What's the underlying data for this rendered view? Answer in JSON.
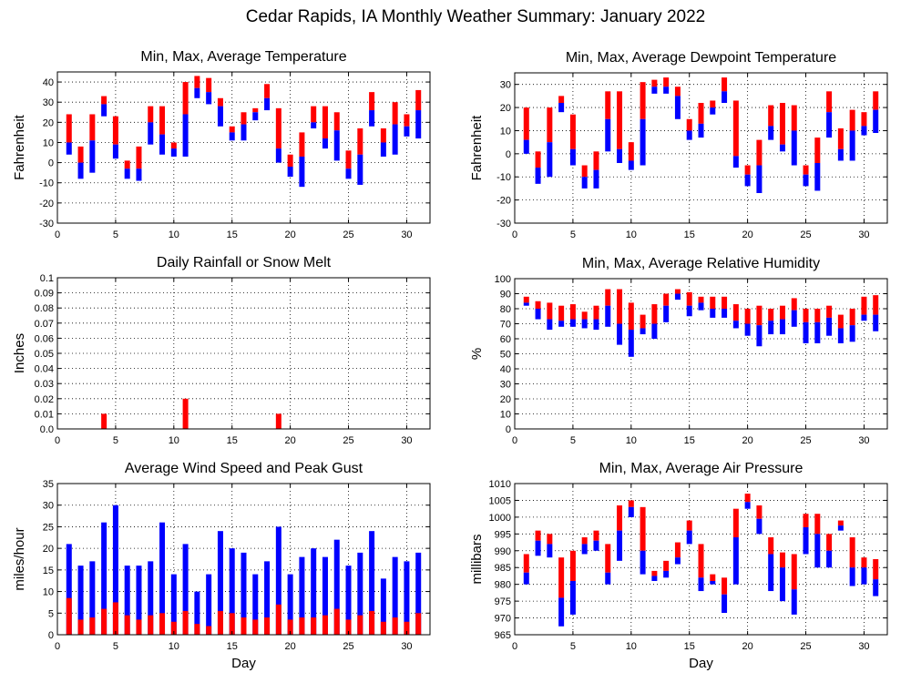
{
  "figure": {
    "title": "Cedar Rapids, IA Monthly Weather Summary: January 2022"
  },
  "colors": {
    "upper": "#ff0000",
    "lower": "#0000ff"
  },
  "chart_data": [
    {
      "id": "temperature",
      "type": "bar",
      "title": "Min, Max, Average Temperature",
      "xlabel": "",
      "ylabel": "Fahrenheit",
      "xlim": [
        0,
        32
      ],
      "ylim": [
        -30,
        45
      ],
      "yticks": [
        -30,
        -20,
        -10,
        0,
        10,
        20,
        30,
        40
      ],
      "xticks": [
        0,
        5,
        10,
        15,
        20,
        25,
        30
      ],
      "grid": true,
      "x": [
        1,
        2,
        3,
        4,
        5,
        6,
        7,
        8,
        9,
        10,
        11,
        12,
        13,
        14,
        15,
        16,
        17,
        18,
        19,
        20,
        21,
        22,
        23,
        24,
        25,
        26,
        27,
        28,
        29,
        30,
        31
      ],
      "min": [
        4,
        -8,
        -5,
        23,
        2,
        -8,
        -9,
        9,
        4,
        3,
        3,
        32,
        29,
        18,
        11,
        11,
        21,
        26,
        0,
        -7,
        -12,
        17,
        7,
        1,
        -8,
        -11,
        18,
        3,
        4,
        13,
        12
      ],
      "max": [
        24,
        8,
        24,
        33,
        23,
        1,
        8,
        28,
        28,
        10,
        40,
        43,
        42,
        32,
        18,
        25,
        27,
        39,
        27,
        4,
        15,
        28,
        28,
        25,
        6,
        17,
        35,
        17,
        30,
        24,
        36
      ],
      "avg": [
        10,
        0,
        11,
        29,
        9,
        -3,
        -3,
        20,
        14,
        7,
        24,
        37,
        35,
        28,
        15,
        19,
        25,
        32,
        7,
        -2,
        3,
        20,
        12,
        16,
        -3,
        4,
        26,
        10,
        19,
        18,
        26
      ]
    },
    {
      "id": "dewpoint",
      "type": "bar",
      "title": "Min, Max, Average Dewpoint Temperature",
      "xlabel": "",
      "ylabel": "Fahrenheit",
      "xlim": [
        0,
        32
      ],
      "ylim": [
        -30,
        35
      ],
      "yticks": [
        -30,
        -20,
        -10,
        0,
        10,
        20,
        30
      ],
      "xticks": [
        0,
        5,
        10,
        15,
        20,
        25,
        30
      ],
      "grid": true,
      "x": [
        1,
        2,
        3,
        4,
        5,
        6,
        7,
        8,
        9,
        10,
        11,
        12,
        13,
        14,
        15,
        16,
        17,
        18,
        19,
        20,
        21,
        22,
        23,
        24,
        25,
        26,
        27,
        28,
        29,
        30,
        31
      ],
      "min": [
        0,
        -13,
        -10,
        18,
        -5,
        -15,
        -15,
        1,
        -4,
        -7,
        -5,
        26,
        26,
        15,
        6,
        7,
        17,
        22,
        -6,
        -14,
        -17,
        6,
        1,
        -5,
        -14,
        -16,
        7,
        -3,
        -3,
        8,
        9
      ],
      "max": [
        20,
        1,
        20,
        25,
        17,
        -5,
        1,
        27,
        27,
        5,
        31,
        32,
        33,
        29,
        15,
        22,
        23,
        33,
        23,
        -5,
        6,
        21,
        22,
        21,
        -5,
        7,
        27,
        11,
        19,
        18,
        27
      ],
      "avg": [
        6,
        -6,
        5,
        22,
        2,
        -10,
        -7,
        15,
        2,
        -3,
        15,
        29,
        29,
        25,
        10,
        13,
        20,
        27,
        -1,
        -9,
        -5,
        12,
        4,
        10,
        -9,
        -4,
        18,
        2,
        10,
        12,
        19
      ]
    },
    {
      "id": "rainfall",
      "type": "bar",
      "title": "Daily Rainfall or Snow Melt",
      "xlabel": "",
      "ylabel": "Inches",
      "xlim": [
        0,
        32
      ],
      "ylim": [
        0,
        0.1
      ],
      "yticks": [
        "0.0",
        "0.01",
        "0.02",
        "0.03",
        "0.04",
        "0.05",
        "0.06",
        "0.07",
        "0.08",
        "0.09",
        "0.1"
      ],
      "xticks": [
        0,
        5,
        10,
        15,
        20,
        25,
        30
      ],
      "grid": true,
      "x": [
        4,
        11,
        19
      ],
      "values": [
        0.01,
        0.02,
        0.01
      ]
    },
    {
      "id": "humidity",
      "type": "bar",
      "title": "Min, Max, Average Relative Humidity",
      "xlabel": "",
      "ylabel": "%",
      "xlim": [
        0,
        32
      ],
      "ylim": [
        0,
        100
      ],
      "yticks": [
        0,
        10,
        20,
        30,
        40,
        50,
        60,
        70,
        80,
        90,
        100
      ],
      "xticks": [
        0,
        5,
        10,
        15,
        20,
        25,
        30
      ],
      "grid": true,
      "x": [
        1,
        2,
        3,
        4,
        5,
        6,
        7,
        8,
        9,
        10,
        11,
        12,
        13,
        14,
        15,
        16,
        17,
        18,
        19,
        20,
        21,
        22,
        23,
        24,
        25,
        26,
        27,
        28,
        29,
        30,
        31
      ],
      "min": [
        82,
        73,
        66,
        68,
        68,
        67,
        66,
        68,
        56,
        48,
        63,
        60,
        71,
        86,
        75,
        79,
        74,
        74,
        67,
        62,
        55,
        63,
        63,
        68,
        57,
        57,
        62,
        57,
        58,
        72,
        65
      ],
      "max": [
        88,
        85,
        84,
        82,
        83,
        78,
        82,
        93,
        93,
        84,
        76,
        83,
        90,
        93,
        91,
        88,
        88,
        88,
        83,
        80,
        82,
        80,
        82,
        87,
        80,
        80,
        82,
        76,
        80,
        88,
        89
      ],
      "avg": [
        84,
        80,
        73,
        72,
        73,
        73,
        73,
        82,
        70,
        66,
        67,
        70,
        82,
        90,
        82,
        84,
        80,
        80,
        72,
        70,
        69,
        72,
        73,
        79,
        71,
        71,
        74,
        67,
        69,
        76,
        76
      ]
    },
    {
      "id": "wind",
      "type": "bar",
      "title": "Average Wind Speed and Peak Gust",
      "xlabel": "Day",
      "ylabel": "miles/hour",
      "xlim": [
        0,
        32
      ],
      "ylim": [
        0,
        35
      ],
      "yticks": [
        0,
        5,
        10,
        15,
        20,
        25,
        30,
        35
      ],
      "xticks": [
        0,
        5,
        10,
        15,
        20,
        25,
        30
      ],
      "grid": true,
      "x": [
        1,
        2,
        3,
        4,
        5,
        6,
        7,
        8,
        9,
        10,
        11,
        12,
        13,
        14,
        15,
        16,
        17,
        18,
        19,
        20,
        21,
        22,
        23,
        24,
        25,
        26,
        27,
        28,
        29,
        30,
        31
      ],
      "avg_speed": [
        8.5,
        3.5,
        4,
        6,
        7.5,
        4.5,
        3.5,
        4.5,
        5,
        3,
        5.5,
        2.5,
        2,
        5.5,
        5,
        4,
        3.5,
        4,
        7,
        3.5,
        4,
        4,
        4.5,
        6,
        3.5,
        4.5,
        5.5,
        3,
        4,
        3,
        5
      ],
      "peak_gust": [
        21,
        16,
        17,
        26,
        30,
        16,
        16,
        17,
        26,
        14,
        21,
        10,
        14,
        24,
        20,
        19,
        14,
        17,
        25,
        14,
        18,
        20,
        18,
        22,
        16,
        19,
        24,
        13,
        18,
        17,
        19
      ]
    },
    {
      "id": "pressure",
      "type": "bar",
      "title": "Min, Max, Average Air Pressure",
      "xlabel": "Day",
      "ylabel": "millibars",
      "xlim": [
        0,
        32
      ],
      "ylim": [
        965,
        1010
      ],
      "yticks": [
        965,
        970,
        975,
        980,
        985,
        990,
        995,
        1000,
        1005,
        1010
      ],
      "xticks": [
        0,
        5,
        10,
        15,
        20,
        25,
        30
      ],
      "grid": true,
      "x": [
        1,
        2,
        3,
        4,
        5,
        6,
        7,
        8,
        9,
        10,
        11,
        12,
        13,
        14,
        15,
        16,
        17,
        18,
        19,
        20,
        21,
        22,
        23,
        24,
        25,
        26,
        27,
        28,
        29,
        30,
        31
      ],
      "min": [
        980,
        988.5,
        988,
        967.5,
        971,
        989,
        990,
        980,
        987,
        1000,
        983,
        981,
        982,
        986,
        992,
        978,
        980,
        971.5,
        980,
        1002.5,
        995,
        978,
        975,
        971,
        989,
        985,
        985,
        996,
        979.5,
        980,
        976.5
      ],
      "max": [
        989,
        996,
        995,
        988,
        990,
        994,
        996,
        992,
        1003.5,
        1005,
        1003,
        984,
        987,
        992.5,
        999,
        992,
        983,
        982,
        1002.5,
        1007,
        1003.5,
        994,
        989.5,
        989,
        1001,
        1001,
        995,
        999,
        994,
        988,
        987.5
      ],
      "avg": [
        983.5,
        993,
        992,
        976,
        981,
        992,
        993,
        983.5,
        996,
        1003,
        990,
        982.5,
        984,
        988,
        996,
        982,
        981,
        977,
        994,
        1004.5,
        999.5,
        989,
        985,
        978.5,
        997,
        995,
        990,
        997.5,
        985,
        985,
        981.5
      ]
    }
  ]
}
